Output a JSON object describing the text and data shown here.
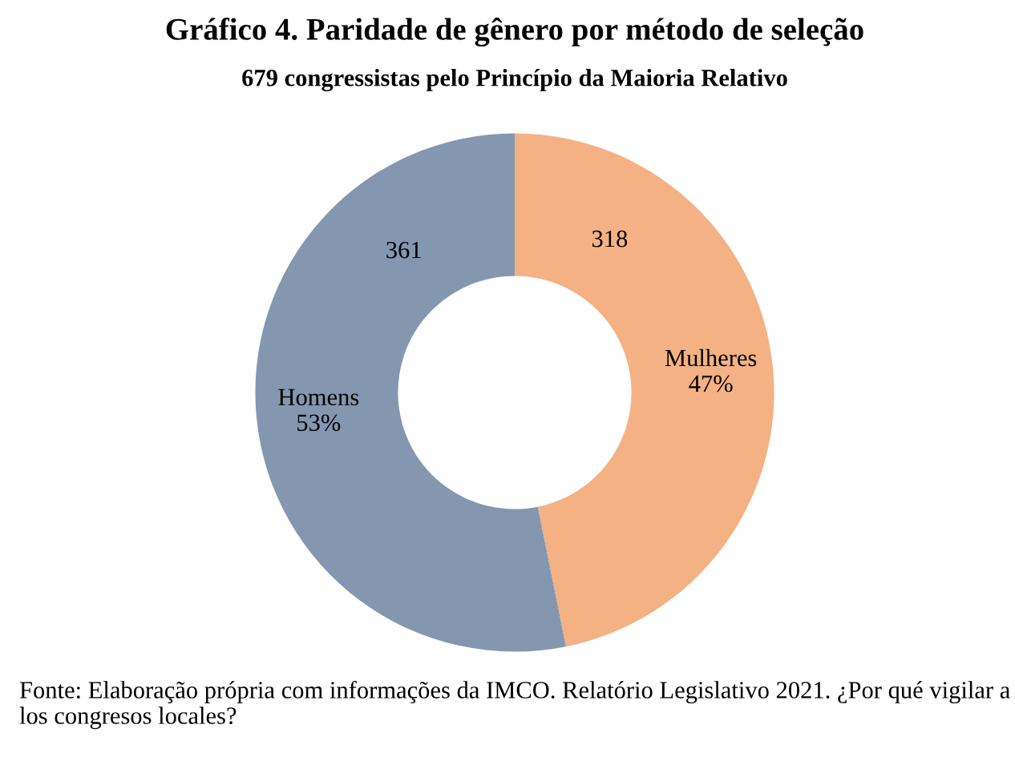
{
  "chart_data": {
    "type": "donut",
    "title": "Gráfico 4. Paridade de gênero por método de seleção",
    "subtitle": "679 congressistas pelo Princípio da Maioria Relativo",
    "categories": [
      "Mulheres",
      "Homens"
    ],
    "values": [
      318,
      361
    ],
    "colors": [
      "#f4b183",
      "#8497b0"
    ],
    "data_labels": true,
    "annotations": [
      {
        "text": "47%",
        "x": "Mulheres"
      },
      {
        "text": "53%",
        "x": "Homens"
      },
      "Fonte: Elaboração própria com informações da IMCO. Relatório Legislativo 2021. ¿Por qué vigilar a los congresos locales?"
    ]
  }
}
